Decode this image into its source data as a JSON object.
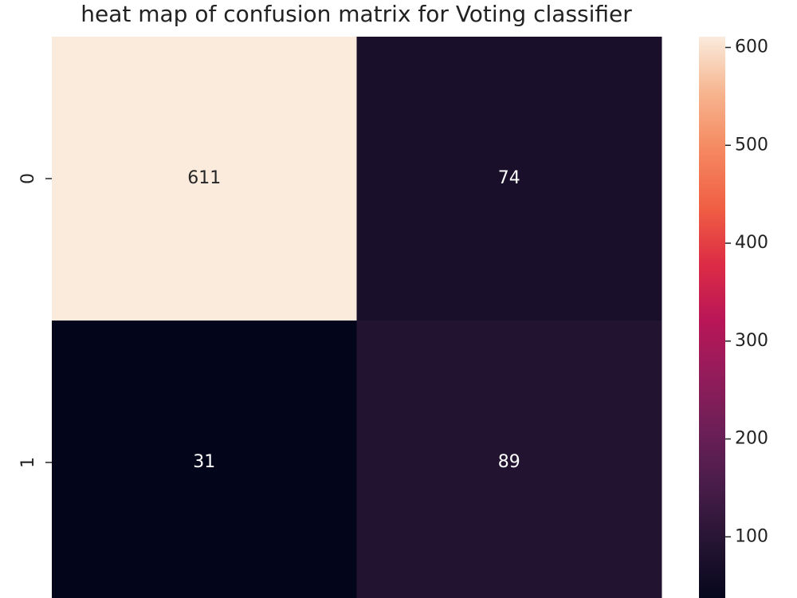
{
  "chart_data": {
    "type": "heatmap",
    "title": "heat map of confusion matrix for Voting classifier",
    "rows": [
      "0",
      "1"
    ],
    "columns": [
      null,
      null
    ],
    "values": [
      [
        611,
        74
      ],
      [
        31,
        89
      ]
    ],
    "colormap": "rocket",
    "clim": [
      31,
      611
    ],
    "cticks": [
      100,
      200,
      300,
      400,
      500,
      600
    ]
  }
}
